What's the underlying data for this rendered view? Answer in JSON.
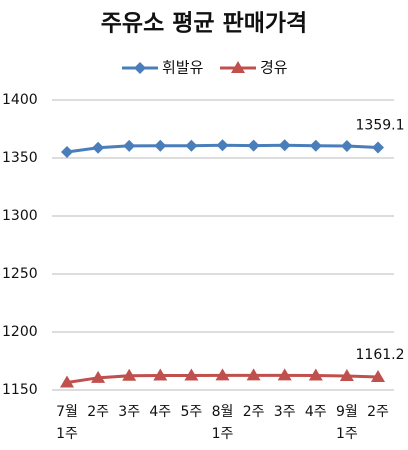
{
  "chart_data": {
    "type": "line",
    "title": "주유소 평균 판매가격",
    "categories": [
      "7월 1주",
      "2주",
      "3주",
      "4주",
      "5주",
      "8월 1주",
      "2주",
      "3주",
      "4주",
      "9월 1주",
      "2주"
    ],
    "series": [
      {
        "name": "휘발유",
        "color": "#4a7ebb",
        "marker": "diamond",
        "values": [
          1355.2,
          1358.8,
          1360.5,
          1360.6,
          1360.6,
          1361,
          1360.7,
          1361,
          1360.6,
          1360.3,
          1359.1
        ],
        "value_labels": [
          null,
          null,
          null,
          null,
          null,
          null,
          null,
          null,
          null,
          null,
          "1359.1"
        ]
      },
      {
        "name": "경유",
        "color": "#c0504d",
        "marker": "triangle",
        "values": [
          1156.5,
          1160.5,
          1162.3,
          1162.5,
          1162.5,
          1162.6,
          1162.6,
          1162.6,
          1162.5,
          1162.1,
          1161.2
        ],
        "value_labels": [
          null,
          null,
          null,
          null,
          null,
          null,
          null,
          null,
          null,
          null,
          "1161.2"
        ]
      }
    ],
    "ylim": [
      1150,
      1400
    ],
    "yticks": [
      1150,
      1200,
      1250,
      1300,
      1350,
      1400
    ],
    "grid": true
  }
}
